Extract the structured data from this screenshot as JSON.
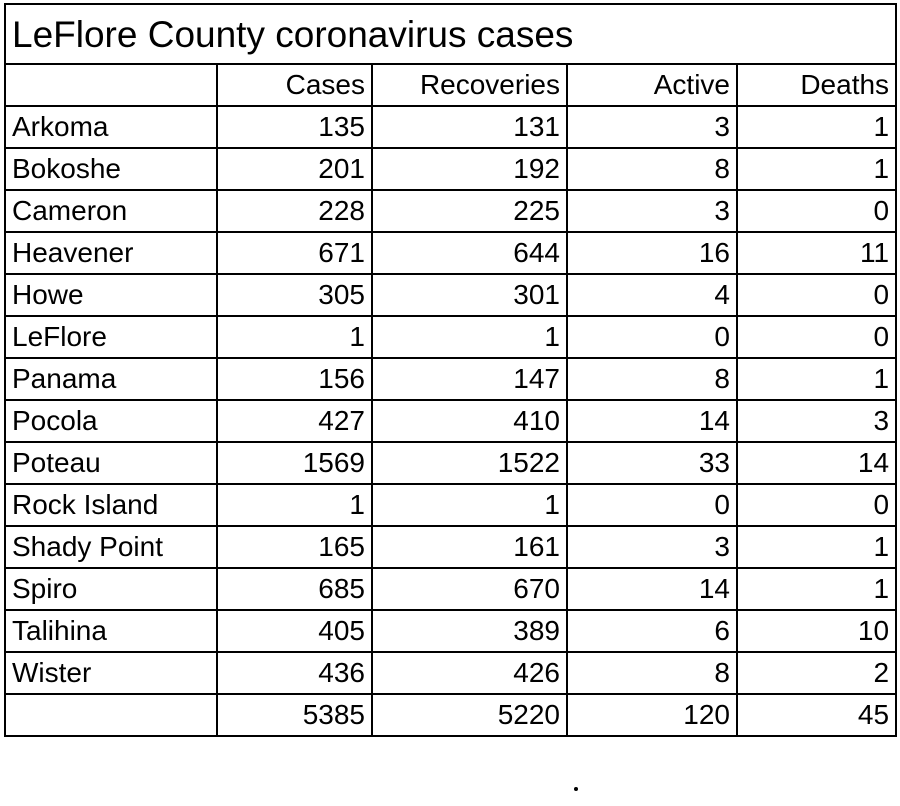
{
  "title": "LeFlore County coronavirus cases",
  "columns": [
    "",
    "Cases",
    "Recoveries",
    "Active",
    "Deaths"
  ],
  "rows": [
    {
      "town": "Arkoma",
      "cases": "135",
      "recoveries": "131",
      "active": "3",
      "deaths": "1"
    },
    {
      "town": "Bokoshe",
      "cases": "201",
      "recoveries": "192",
      "active": "8",
      "deaths": "1"
    },
    {
      "town": "Cameron",
      "cases": "228",
      "recoveries": "225",
      "active": "3",
      "deaths": "0"
    },
    {
      "town": "Heavener",
      "cases": "671",
      "recoveries": "644",
      "active": "16",
      "deaths": "11"
    },
    {
      "town": "Howe",
      "cases": "305",
      "recoveries": "301",
      "active": "4",
      "deaths": "0"
    },
    {
      "town": "LeFlore",
      "cases": "1",
      "recoveries": "1",
      "active": "0",
      "deaths": "0"
    },
    {
      "town": "Panama",
      "cases": "156",
      "recoveries": "147",
      "active": "8",
      "deaths": "1"
    },
    {
      "town": "Pocola",
      "cases": "427",
      "recoveries": "410",
      "active": "14",
      "deaths": "3"
    },
    {
      "town": "Poteau",
      "cases": "1569",
      "recoveries": "1522",
      "active": "33",
      "deaths": "14"
    },
    {
      "town": "Rock Island",
      "cases": "1",
      "recoveries": "1",
      "active": "0",
      "deaths": "0"
    },
    {
      "town": "Shady Point",
      "cases": "165",
      "recoveries": "161",
      "active": "3",
      "deaths": "1"
    },
    {
      "town": "Spiro",
      "cases": "685",
      "recoveries": "670",
      "active": "14",
      "deaths": "1"
    },
    {
      "town": "Talihina",
      "cases": "405",
      "recoveries": "389",
      "active": "6",
      "deaths": "10"
    },
    {
      "town": "Wister",
      "cases": "436",
      "recoveries": "426",
      "active": "8",
      "deaths": "2"
    }
  ],
  "totals": {
    "label": "",
    "cases": "5385",
    "recoveries": "5220",
    "active": "120",
    "deaths": "45"
  },
  "footer_mark": "."
}
